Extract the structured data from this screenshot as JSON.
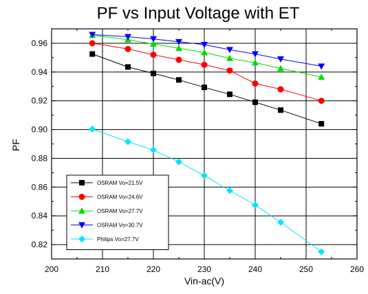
{
  "chart_data": {
    "type": "line",
    "title": "PF vs Input Voltage with ET",
    "xlabel": "Vin-ac(V)",
    "ylabel": "PF",
    "xlim": [
      200,
      260
    ],
    "ylim": [
      0.81,
      0.97
    ],
    "x_ticks": [
      200,
      210,
      220,
      230,
      240,
      250,
      260
    ],
    "y_ticks": [
      0.82,
      0.84,
      0.86,
      0.88,
      0.9,
      0.92,
      0.94,
      0.96
    ],
    "x_tick_labels": [
      "200",
      "210",
      "220",
      "230",
      "240",
      "250",
      "260"
    ],
    "y_tick_labels": [
      "0.82",
      "0.84",
      "0.86",
      "0.88",
      "0.90",
      "0.92",
      "0.94",
      "0.96"
    ],
    "grid": true,
    "legend_position": "bottom-left",
    "x": [
      208,
      215,
      220,
      225,
      230,
      235,
      240,
      245,
      253
    ],
    "series": [
      {
        "name": "OSRAM Vo=21.5V",
        "color": "#000000",
        "marker": "square",
        "values": [
          0.9525,
          0.9435,
          0.939,
          0.9345,
          0.9293,
          0.9245,
          0.919,
          0.9135,
          0.904
        ]
      },
      {
        "name": "OSRAM Vo=24.6V",
        "color": "#ff0000",
        "marker": "circle",
        "values": [
          0.96,
          0.956,
          0.952,
          0.9485,
          0.945,
          0.941,
          0.932,
          0.928,
          0.92
        ]
      },
      {
        "name": "OSRAM Vo=27.7V",
        "color": "#00dd00",
        "marker": "triangle-up",
        "values": [
          0.9655,
          0.9625,
          0.9595,
          0.9565,
          0.9535,
          0.9495,
          0.9465,
          0.9425,
          0.9365
        ]
      },
      {
        "name": "OSRAM Vo=30.7V",
        "color": "#0000ff",
        "marker": "triangle-down",
        "values": [
          0.966,
          0.9645,
          0.963,
          0.961,
          0.959,
          0.9555,
          0.9525,
          0.949,
          0.944
        ]
      },
      {
        "name": "Philips Vo=27.7V",
        "color": "#00e5ff",
        "marker": "diamond",
        "values": [
          0.9003,
          0.8915,
          0.8858,
          0.8775,
          0.868,
          0.8575,
          0.8475,
          0.8355,
          0.815
        ]
      }
    ]
  }
}
